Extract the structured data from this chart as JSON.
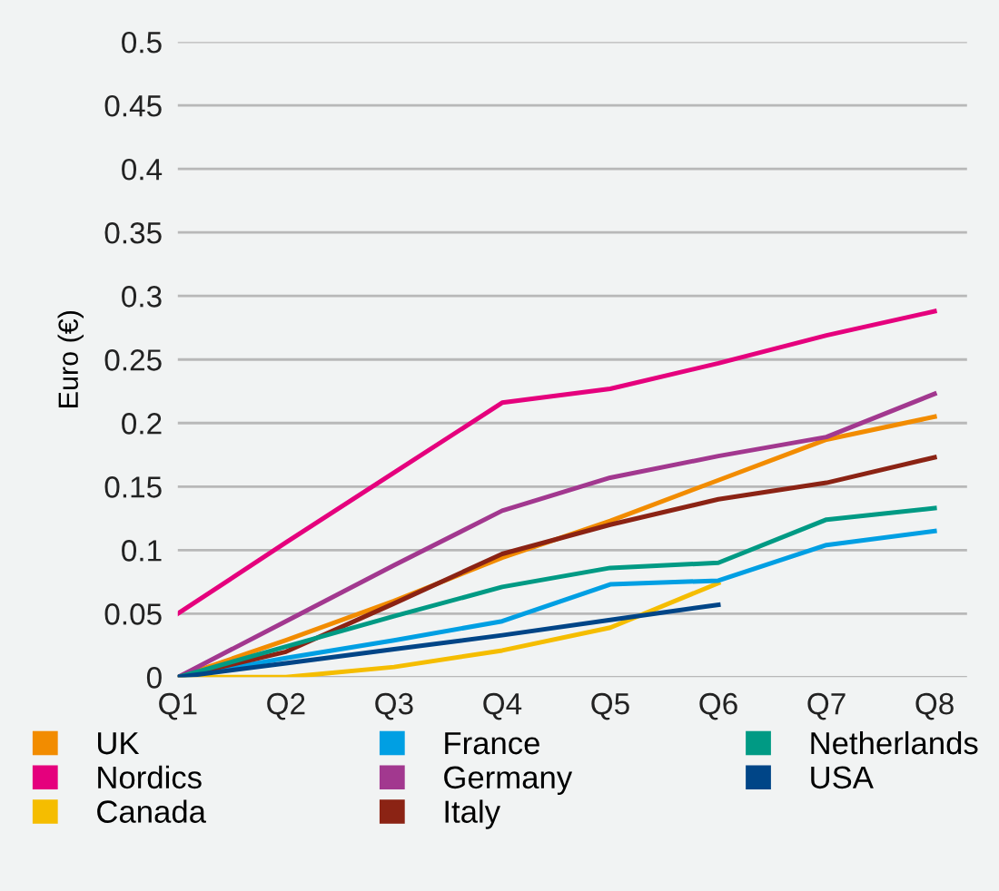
{
  "chart_data": {
    "type": "line",
    "ylabel": "Euro (€)",
    "categories": [
      "Q1",
      "Q2",
      "Q3",
      "Q4",
      "Q5",
      "Q6",
      "Q7",
      "Q8"
    ],
    "ylim": [
      0,
      0.5
    ],
    "yticks": [
      0,
      0.05,
      0.1,
      0.15,
      0.2,
      0.25,
      0.3,
      0.35,
      0.4,
      0.45,
      0.5
    ],
    "grid": "y",
    "legend": "bottom",
    "marker": "none",
    "line_style": "solid",
    "series": [
      {
        "name": "UK",
        "color": "#f28c00",
        "values": [
          0,
          0.029,
          0.06,
          0.094,
          0.123,
          0.155,
          0.187,
          0.205
        ]
      },
      {
        "name": "Nordics",
        "color": "#e5007d",
        "values": [
          0.05,
          0.106,
          0.161,
          0.216,
          0.227,
          0.247,
          0.269,
          0.288
        ]
      },
      {
        "name": "Canada",
        "color": "#f5bd00",
        "values": [
          0,
          0,
          0.008,
          0.021,
          0.039,
          0.074,
          null,
          null
        ]
      },
      {
        "name": "France",
        "color": "#009fe3",
        "values": [
          0,
          0.015,
          0.029,
          0.044,
          0.073,
          0.076,
          0.104,
          0.115
        ]
      },
      {
        "name": "Germany",
        "color": "#a2388f",
        "values": [
          0,
          0.044,
          0.088,
          0.131,
          0.157,
          0.174,
          0.189,
          0.223
        ]
      },
      {
        "name": "Italy",
        "color": "#8b2314",
        "values": [
          0,
          0.02,
          0.058,
          0.097,
          0.12,
          0.14,
          0.153,
          0.173
        ]
      },
      {
        "name": "Netherlands",
        "color": "#009a84",
        "values": [
          0,
          0.024,
          0.048,
          0.071,
          0.086,
          0.09,
          0.124,
          0.133
        ]
      },
      {
        "name": "USA",
        "color": "#004587",
        "values": [
          0,
          0.011,
          0.022,
          0.033,
          0.045,
          0.057,
          null,
          null
        ]
      }
    ]
  }
}
